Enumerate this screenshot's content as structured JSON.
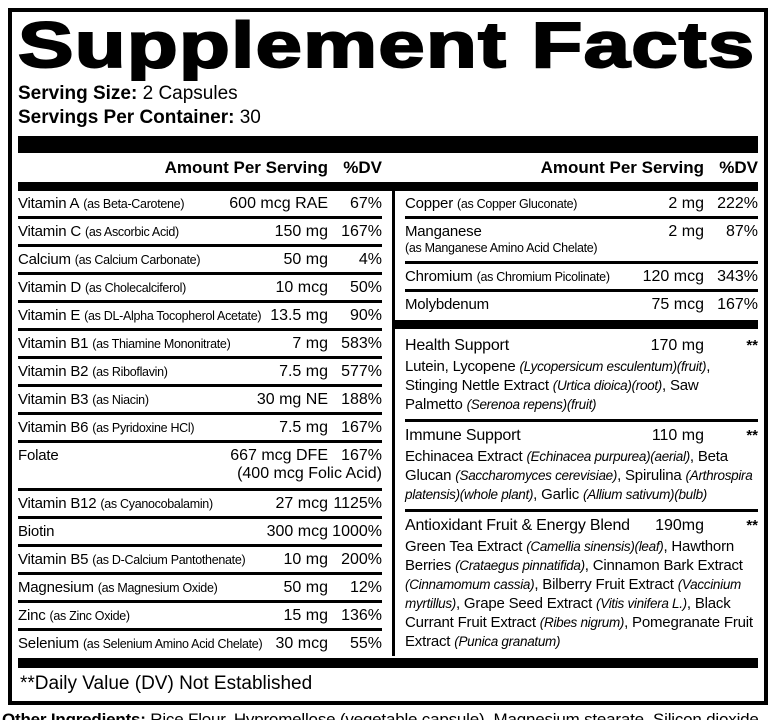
{
  "colors": {
    "ink": "#000000",
    "paper": "#ffffff"
  },
  "header": {
    "title": "Supplement Facts",
    "serving_size_label": "Serving Size:",
    "serving_size_value": "2 Capsules",
    "servings_per_container_label": "Servings Per Container:",
    "servings_per_container_value": "30"
  },
  "table": {
    "amount_header": "Amount Per Serving",
    "dv_header": "%DV",
    "left_rows": [
      {
        "name": "Vitamin A",
        "form": "(as Beta-Carotene)",
        "amount": "600 mcg RAE",
        "dv": "67%"
      },
      {
        "name": "Vitamin C",
        "form": "(as Ascorbic Acid)",
        "amount": "150 mg",
        "dv": "167%"
      },
      {
        "name": "Calcium",
        "form": "(as Calcium Carbonate)",
        "amount": "50 mg",
        "dv": "4%"
      },
      {
        "name": "Vitamin D",
        "form": "(as Cholecalciferol)",
        "amount": "10 mcg",
        "dv": "50%"
      },
      {
        "name": "Vitamin E",
        "form": "(as DL-Alpha Tocopherol Acetate)",
        "amount": "13.5 mg",
        "dv": "90%"
      },
      {
        "name": "Vitamin B1",
        "form": "(as Thiamine Mononitrate)",
        "amount": "7 mg",
        "dv": "583%"
      },
      {
        "name": "Vitamin B2",
        "form": "(as Riboflavin)",
        "amount": "7.5 mg",
        "dv": "577%"
      },
      {
        "name": "Vitamin B3",
        "form": "(as Niacin)",
        "amount": "30 mg NE",
        "dv": "188%"
      },
      {
        "name": "Vitamin B6",
        "form": "(as Pyridoxine HCl)",
        "amount": "7.5 mg",
        "dv": "167%"
      },
      {
        "name": "Folate",
        "form": "",
        "amount": "667 mcg DFE",
        "dv": "167%",
        "amount2": "(400 mcg Folic Acid)"
      },
      {
        "name": "Vitamin B12",
        "form": "(as Cyanocobalamin)",
        "amount": "27 mcg",
        "dv": "1125%"
      },
      {
        "name": "Biotin",
        "form": "",
        "amount": "300 mcg",
        "dv": "1000%"
      },
      {
        "name": "Vitamin B5",
        "form": "(as D-Calcium Pantothenate)",
        "amount": "10 mg",
        "dv": "200%"
      },
      {
        "name": "Magnesium",
        "form": "(as Magnesium Oxide)",
        "amount": "50 mg",
        "dv": "12%"
      },
      {
        "name": "Zinc",
        "form": "(as Zinc Oxide)",
        "amount": "15 mg",
        "dv": "136%"
      },
      {
        "name": "Selenium",
        "form": "(as Selenium Amino Acid Chelate)",
        "amount": "30 mcg",
        "dv": "55%"
      }
    ],
    "right_rows": [
      {
        "name": "Copper",
        "form": "(as Copper Gluconate)",
        "amount": "2 mg",
        "dv": "222%"
      },
      {
        "name": "Manganese",
        "form": "",
        "amount": "2 mg",
        "dv": "87%",
        "form2": "(as Manganese Amino Acid Chelate)"
      },
      {
        "name": "Chromium",
        "form": "(as Chromium Picolinate)",
        "amount": "120 mcg",
        "dv": "343%"
      },
      {
        "name": "Molybdenum",
        "form": "",
        "amount": "75 mcg",
        "dv": "167%"
      }
    ],
    "blends": [
      {
        "name": "Health Support",
        "amount": "170 mg",
        "dv": "**",
        "ingredients": [
          {
            "text": "Lutein, Lycopene ",
            "italic": false
          },
          {
            "text": "(Lycopersicum esculentum)(fruit)",
            "italic": true
          },
          {
            "text": ", Stinging Nettle Extract ",
            "italic": false
          },
          {
            "text": "(Urtica dioica)(root)",
            "italic": true
          },
          {
            "text": ", Saw Palmetto ",
            "italic": false
          },
          {
            "text": "(Serenoa repens)(fruit)",
            "italic": true
          }
        ]
      },
      {
        "name": "Immune Support",
        "amount": "110 mg",
        "dv": "**",
        "ingredients": [
          {
            "text": "Echinacea Extract ",
            "italic": false
          },
          {
            "text": "(Echinacea purpurea)(aerial)",
            "italic": true
          },
          {
            "text": ", Beta Glucan ",
            "italic": false
          },
          {
            "text": "(Saccharomyces cerevisiae)",
            "italic": true
          },
          {
            "text": ", Spirulina ",
            "italic": false
          },
          {
            "text": "(Arthrospira platensis)(whole plant)",
            "italic": true
          },
          {
            "text": ", Garlic ",
            "italic": false
          },
          {
            "text": "(Allium sativum)(bulb)",
            "italic": true
          }
        ]
      },
      {
        "name": "Antioxidant Fruit & Energy Blend",
        "amount": "190mg",
        "dv": "**",
        "ingredients": [
          {
            "text": "Green Tea Extract ",
            "italic": false
          },
          {
            "text": "(Camellia sinensis)(leaf)",
            "italic": true
          },
          {
            "text": ", Hawthorn Berries ",
            "italic": false
          },
          {
            "text": "(Crataegus pinnatifida)",
            "italic": true
          },
          {
            "text": ", Cinnamon Bark Extract ",
            "italic": false
          },
          {
            "text": "(Cinnamomum cassia)",
            "italic": true
          },
          {
            "text": ", Bilberry Fruit Extract ",
            "italic": false
          },
          {
            "text": "(Vaccinium myrtillus)",
            "italic": true
          },
          {
            "text": ", Grape Seed Extract ",
            "italic": false
          },
          {
            "text": "(Vitis vinifera L.)",
            "italic": true
          },
          {
            "text": ", Black Currant Fruit Extract ",
            "italic": false
          },
          {
            "text": "(Ribes nigrum)",
            "italic": true
          },
          {
            "text": ", Pomegranate Fruit Extract ",
            "italic": false
          },
          {
            "text": "(Punica granatum)",
            "italic": true
          }
        ]
      }
    ]
  },
  "footnote": "**Daily Value (DV) Not Established",
  "other_ingredients": {
    "label": "Other Ingredients:",
    "text": " Rice Flour, Hypromellose (vegetable capsule), Magnesium stearate, Silicon dioxide."
  }
}
